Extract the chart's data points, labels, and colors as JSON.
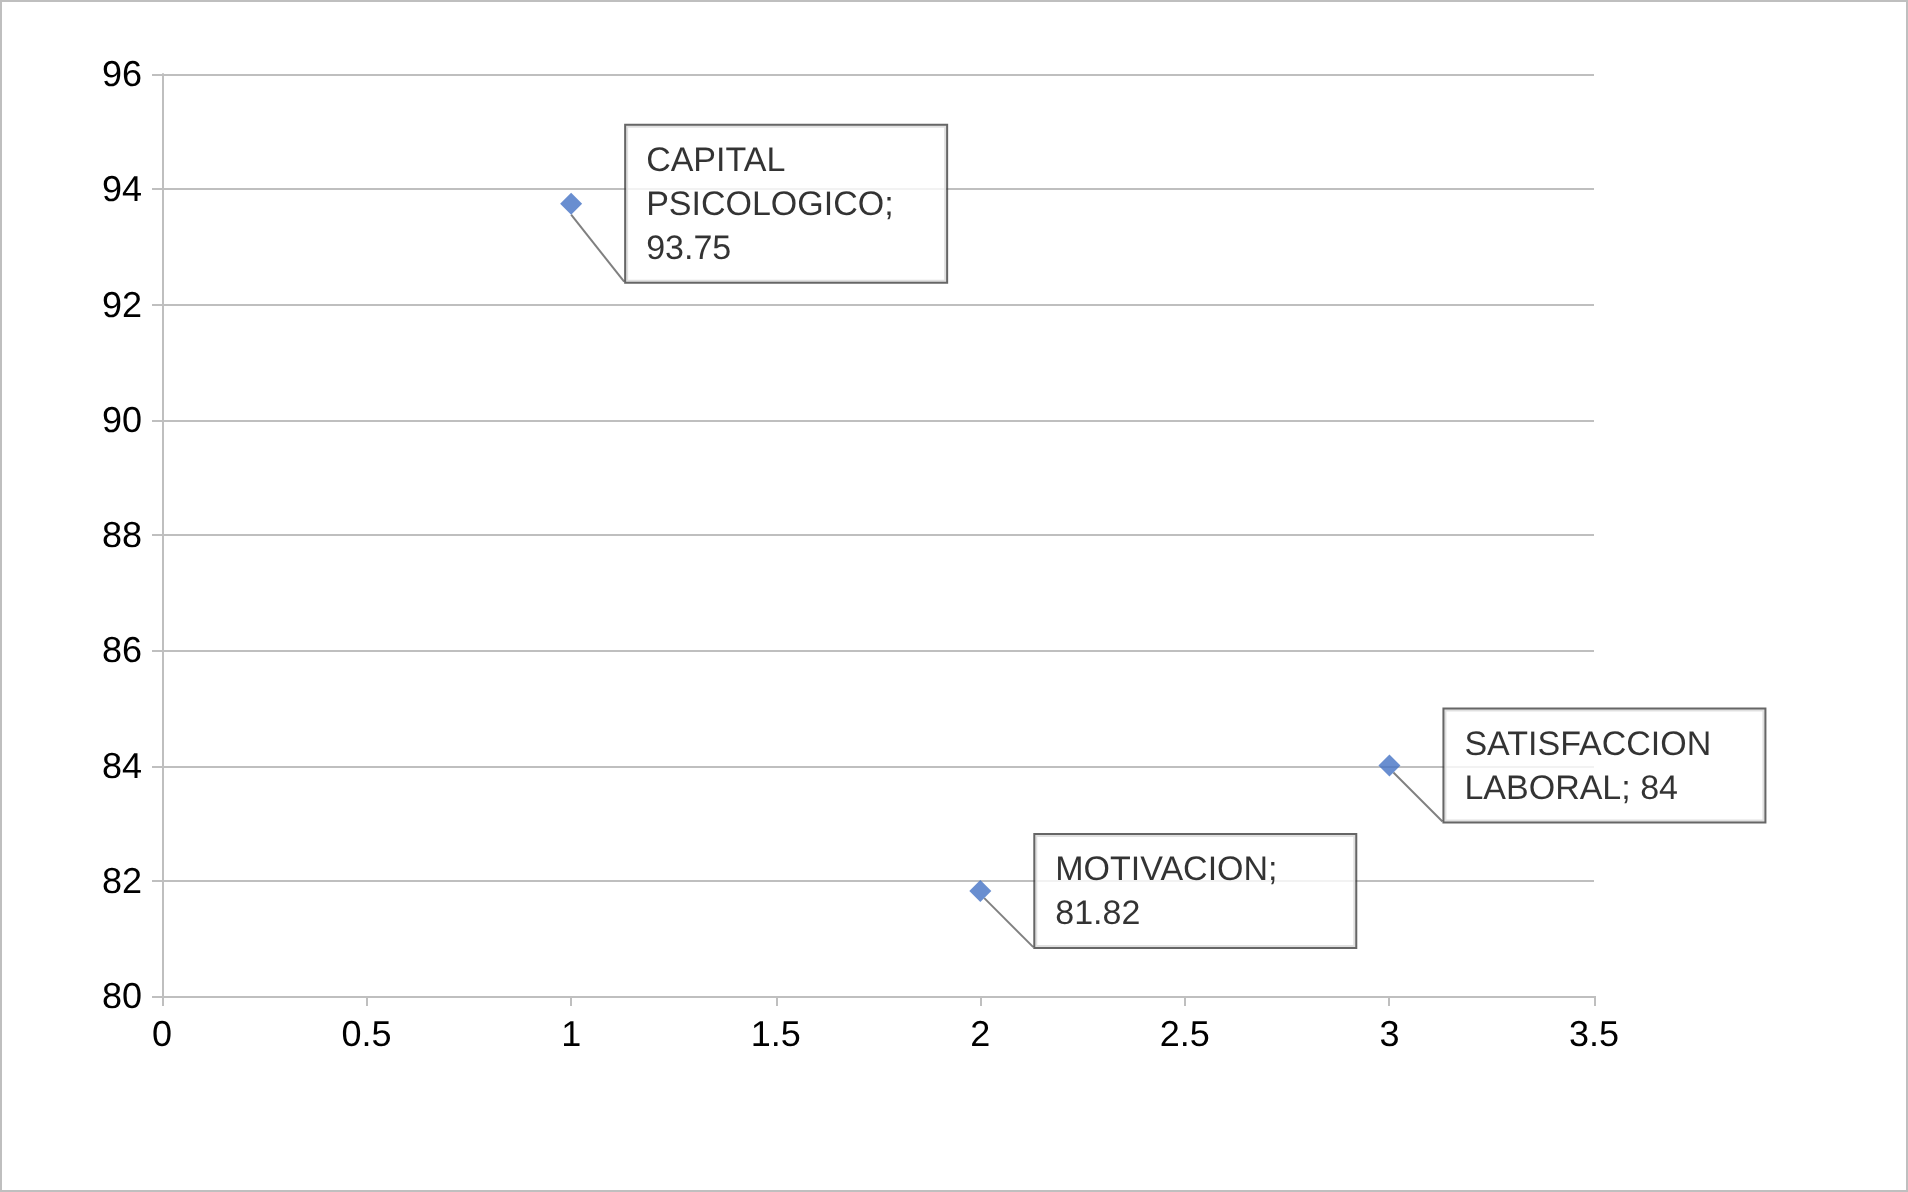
{
  "chart_data": {
    "type": "scatter",
    "x": [
      1,
      2,
      3
    ],
    "values": [
      93.75,
      81.82,
      84
    ],
    "value_labels": [
      "CAPITAL PSICOLOGICO; 93.75",
      "MOTIVACION; 81.82",
      "SATISFACCION LABORAL; 84"
    ],
    "color": "#4472c4",
    "marker": "diamond",
    "xlim": [
      0,
      3.5
    ],
    "xticks": [
      0,
      0.5,
      1,
      1.5,
      2,
      2.5,
      3,
      3.5
    ],
    "ylim": [
      80,
      96
    ],
    "yticks": [
      80,
      82,
      84,
      86,
      88,
      90,
      92,
      94,
      96
    ],
    "grid": "y"
  }
}
